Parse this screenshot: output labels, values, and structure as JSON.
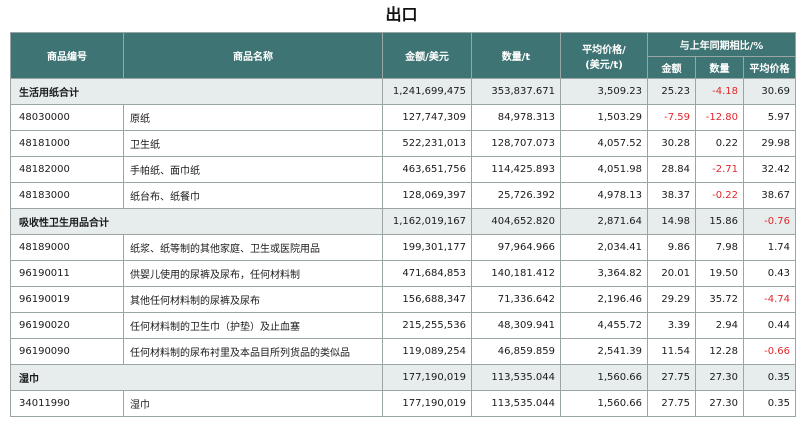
{
  "title": "出口",
  "headers": {
    "code": "商品编号",
    "name": "商品名称",
    "amount": "金额/美元",
    "quantity": "数量/t",
    "avg_price_line1": "平均价格/",
    "avg_price_line2": "(美元/t)",
    "yoy": "与上年同期相比/%",
    "yoy_amount": "金额",
    "yoy_quantity": "数量",
    "yoy_avg_price": "平均价格"
  },
  "rows": [
    {
      "type": "total",
      "name": "生活用纸合计",
      "amount": "1,241,699,475",
      "quantity": "353,837.671",
      "avg_price": "3,509.23",
      "yoy_amount": "25.23",
      "yoy_quantity": "-4.18",
      "yoy_avg_price": "30.69"
    },
    {
      "type": "item",
      "code": "48030000",
      "name": "原纸",
      "amount": "127,747,309",
      "quantity": "84,978.313",
      "avg_price": "1,503.29",
      "yoy_amount": "-7.59",
      "yoy_quantity": "-12.80",
      "yoy_avg_price": "5.97"
    },
    {
      "type": "item",
      "code": "48181000",
      "name": "卫生纸",
      "amount": "522,231,013",
      "quantity": "128,707.073",
      "avg_price": "4,057.52",
      "yoy_amount": "30.28",
      "yoy_quantity": "0.22",
      "yoy_avg_price": "29.98"
    },
    {
      "type": "item",
      "code": "48182000",
      "name": "手帕纸、面巾纸",
      "amount": "463,651,756",
      "quantity": "114,425.893",
      "avg_price": "4,051.98",
      "yoy_amount": "28.84",
      "yoy_quantity": "-2.71",
      "yoy_avg_price": "32.42"
    },
    {
      "type": "item",
      "code": "48183000",
      "name": "纸台布、纸餐巾",
      "amount": "128,069,397",
      "quantity": "25,726.392",
      "avg_price": "4,978.13",
      "yoy_amount": "38.37",
      "yoy_quantity": "-0.22",
      "yoy_avg_price": "38.67"
    },
    {
      "type": "total",
      "name": "吸收性卫生用品合计",
      "amount": "1,162,019,167",
      "quantity": "404,652.820",
      "avg_price": "2,871.64",
      "yoy_amount": "14.98",
      "yoy_quantity": "15.86",
      "yoy_avg_price": "-0.76"
    },
    {
      "type": "item",
      "code": "48189000",
      "name": "纸浆、纸等制的其他家庭、卫生或医院用品",
      "amount": "199,301,177",
      "quantity": "97,964.966",
      "avg_price": "2,034.41",
      "yoy_amount": "9.86",
      "yoy_quantity": "7.98",
      "yoy_avg_price": "1.74"
    },
    {
      "type": "item",
      "code": "96190011",
      "name": "供婴儿使用的尿裤及尿布，任何材料制",
      "amount": "471,684,853",
      "quantity": "140,181.412",
      "avg_price": "3,364.82",
      "yoy_amount": "20.01",
      "yoy_quantity": "19.50",
      "yoy_avg_price": "0.43"
    },
    {
      "type": "item",
      "code": "96190019",
      "name": "其他任何材料制的尿裤及尿布",
      "amount": "156,688,347",
      "quantity": "71,336.642",
      "avg_price": "2,196.46",
      "yoy_amount": "29.29",
      "yoy_quantity": "35.72",
      "yoy_avg_price": "-4.74"
    },
    {
      "type": "item",
      "code": "96190020",
      "name": "任何材料制的卫生巾（护垫）及止血塞",
      "amount": "215,255,536",
      "quantity": "48,309.941",
      "avg_price": "4,455.72",
      "yoy_amount": "3.39",
      "yoy_quantity": "2.94",
      "yoy_avg_price": "0.44"
    },
    {
      "type": "item",
      "code": "96190090",
      "name": "任何材料制的尿布衬里及本品目所列货品的类似品",
      "amount": "119,089,254",
      "quantity": "46,859.859",
      "avg_price": "2,541.39",
      "yoy_amount": "11.54",
      "yoy_quantity": "12.28",
      "yoy_avg_price": "-0.66"
    },
    {
      "type": "total",
      "name": "湿巾",
      "amount": "177,190,019",
      "quantity": "113,535.044",
      "avg_price": "1,560.66",
      "yoy_amount": "27.75",
      "yoy_quantity": "27.30",
      "yoy_avg_price": "0.35"
    },
    {
      "type": "item",
      "code": "34011990",
      "name": "湿巾",
      "amount": "177,190,019",
      "quantity": "113,535.044",
      "avg_price": "1,560.66",
      "yoy_amount": "27.75",
      "yoy_quantity": "27.30",
      "yoy_avg_price": "0.35"
    }
  ],
  "colors": {
    "header_bg": "#3f7474",
    "total_row_bg": "#e7eded",
    "negative": "#e0282c"
  }
}
